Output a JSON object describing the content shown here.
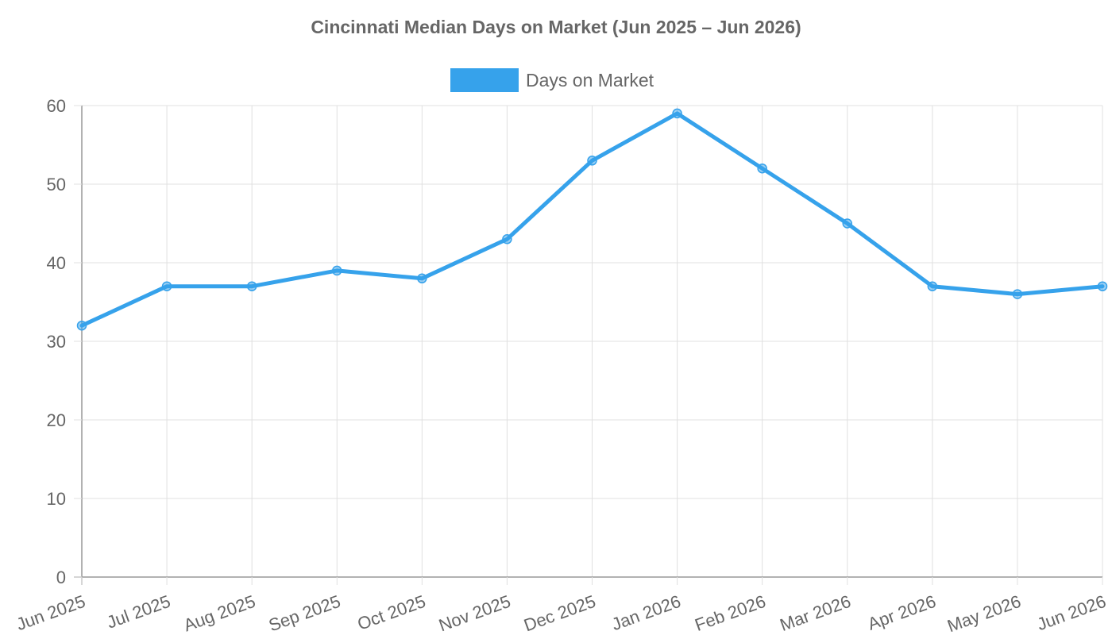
{
  "chart_data": {
    "type": "line",
    "title": "Cincinnati Median Days on Market (Jun 2025 – Jun 2026)",
    "xlabel": "",
    "ylabel": "",
    "categories": [
      "Jun 2025",
      "Jul 2025",
      "Aug 2025",
      "Sep 2025",
      "Oct 2025",
      "Nov 2025",
      "Dec 2025",
      "Jan 2026",
      "Feb 2026",
      "Mar 2026",
      "Apr 2026",
      "May 2026",
      "Jun 2026"
    ],
    "series": [
      {
        "name": "Days on Market",
        "values": [
          32,
          37,
          37,
          39,
          38,
          43,
          53,
          59,
          52,
          45,
          37,
          36,
          37
        ],
        "color": "#36a2eb"
      }
    ],
    "ylim": [
      0,
      60
    ],
    "yticks": [
      0,
      10,
      20,
      30,
      40,
      50,
      60
    ],
    "grid": true,
    "legend": "top-center"
  }
}
